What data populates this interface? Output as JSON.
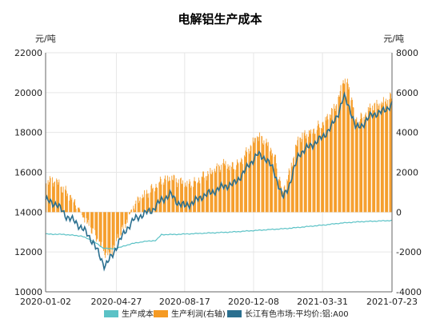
{
  "chart_data": {
    "type": "bar+line",
    "title": "电解铝生产成本",
    "left_unit": "元/吨",
    "right_unit": "元/吨",
    "left_axis": {
      "min": 10000,
      "max": 22000,
      "ticks": [
        10000,
        12000,
        14000,
        16000,
        18000,
        20000,
        22000
      ]
    },
    "right_axis": {
      "min": -4000,
      "max": 8000,
      "ticks": [
        -4000,
        -2000,
        0,
        2000,
        4000,
        6000,
        8000
      ]
    },
    "x_range": [
      "2020-01-02",
      "2021-07-23"
    ],
    "x_ticks": [
      "2020-01-02",
      "2020-04-27",
      "2020-08-17",
      "2020-12-08",
      "2021-03-31",
      "2021-07-23"
    ],
    "legend": [
      {
        "name": "生产成本",
        "color": "#5bc2c6"
      },
      {
        "name": "生产利润(右轴)",
        "color": "#f59a23"
      },
      {
        "name": "长江有色市场:平均价:铝:A00",
        "color": "#2a6f8f"
      }
    ],
    "series": [
      {
        "name": "生产成本",
        "axis": "left",
        "color": "#5bc2c6",
        "points": [
          [
            "2020-01-02",
            12900
          ],
          [
            "2020-02-01",
            12880
          ],
          [
            "2020-03-01",
            12800
          ],
          [
            "2020-03-20",
            12550
          ],
          [
            "2020-04-05",
            12200
          ],
          [
            "2020-04-20",
            12150
          ],
          [
            "2020-05-05",
            12250
          ],
          [
            "2020-05-20",
            12400
          ],
          [
            "2020-06-10",
            12520
          ],
          [
            "2020-07-01",
            12580
          ],
          [
            "2020-07-10",
            12870
          ],
          [
            "2020-08-01",
            12880
          ],
          [
            "2020-09-01",
            12920
          ],
          [
            "2020-10-01",
            12960
          ],
          [
            "2020-11-01",
            13000
          ],
          [
            "2020-12-01",
            13060
          ],
          [
            "2021-01-01",
            13120
          ],
          [
            "2021-02-01",
            13180
          ],
          [
            "2021-03-01",
            13260
          ],
          [
            "2021-04-01",
            13350
          ],
          [
            "2021-05-01",
            13450
          ],
          [
            "2021-06-01",
            13520
          ],
          [
            "2021-07-23",
            13580
          ]
        ]
      },
      {
        "name": "生产利润(右轴)",
        "axis": "right",
        "color": "#f59a23",
        "points": [
          [
            "2020-01-02",
            1600
          ],
          [
            "2020-01-20",
            1500
          ],
          [
            "2020-02-05",
            1000
          ],
          [
            "2020-02-20",
            500
          ],
          [
            "2020-03-05",
            -300
          ],
          [
            "2020-03-20",
            -1000
          ],
          [
            "2020-04-05",
            -1900
          ],
          [
            "2020-04-15",
            -2200
          ],
          [
            "2020-04-27",
            -1400
          ],
          [
            "2020-05-10",
            -700
          ],
          [
            "2020-05-25",
            300
          ],
          [
            "2020-06-10",
            800
          ],
          [
            "2020-06-25",
            1200
          ],
          [
            "2020-07-10",
            1600
          ],
          [
            "2020-07-25",
            1700
          ],
          [
            "2020-08-17",
            1400
          ],
          [
            "2020-09-01",
            1500
          ],
          [
            "2020-09-15",
            1800
          ],
          [
            "2020-10-01",
            2000
          ],
          [
            "2020-10-20",
            2400
          ],
          [
            "2020-11-05",
            2300
          ],
          [
            "2020-11-20",
            2700
          ],
          [
            "2020-12-01",
            3200
          ],
          [
            "2020-12-15",
            3800
          ],
          [
            "2020-12-28",
            3500
          ],
          [
            "2021-01-10",
            3000
          ],
          [
            "2021-01-25",
            1000
          ],
          [
            "2021-02-05",
            2000
          ],
          [
            "2021-02-20",
            3700
          ],
          [
            "2021-03-05",
            3900
          ],
          [
            "2021-03-20",
            4200
          ],
          [
            "2021-04-01",
            4500
          ],
          [
            "2021-04-15",
            5000
          ],
          [
            "2021-04-25",
            5500
          ],
          [
            "2021-05-05",
            6700
          ],
          [
            "2021-05-15",
            6200
          ],
          [
            "2021-05-25",
            4600
          ],
          [
            "2021-06-05",
            4800
          ],
          [
            "2021-06-20",
            5300
          ],
          [
            "2021-07-05",
            5400
          ],
          [
            "2021-07-23",
            5800
          ]
        ]
      },
      {
        "name": "长江有色市场:平均价:铝:A00",
        "axis": "left",
        "color": "#2a6f8f",
        "points": [
          [
            "2020-01-02",
            14600
          ],
          [
            "2020-01-20",
            14400
          ],
          [
            "2020-02-05",
            13800
          ],
          [
            "2020-02-20",
            13500
          ],
          [
            "2020-03-05",
            13100
          ],
          [
            "2020-03-20",
            12500
          ],
          [
            "2020-04-01",
            11700
          ],
          [
            "2020-04-08",
            11300
          ],
          [
            "2020-04-20",
            11800
          ],
          [
            "2020-05-01",
            12500
          ],
          [
            "2020-05-15",
            13200
          ],
          [
            "2020-05-25",
            13600
          ],
          [
            "2020-06-10",
            13900
          ],
          [
            "2020-06-25",
            14100
          ],
          [
            "2020-07-10",
            14600
          ],
          [
            "2020-07-25",
            14900
          ],
          [
            "2020-08-05",
            14500
          ],
          [
            "2020-08-17",
            14300
          ],
          [
            "2020-09-01",
            14500
          ],
          [
            "2020-09-15",
            14800
          ],
          [
            "2020-10-01",
            15000
          ],
          [
            "2020-10-20",
            15300
          ],
          [
            "2020-11-05",
            15400
          ],
          [
            "2020-11-20",
            15900
          ],
          [
            "2020-12-01",
            16400
          ],
          [
            "2020-12-15",
            16900
          ],
          [
            "2020-12-28",
            16700
          ],
          [
            "2021-01-10",
            16100
          ],
          [
            "2021-01-25",
            14700
          ],
          [
            "2021-02-05",
            15400
          ],
          [
            "2021-02-20",
            16900
          ],
          [
            "2021-03-05",
            17200
          ],
          [
            "2021-03-20",
            17500
          ],
          [
            "2021-04-01",
            17800
          ],
          [
            "2021-04-15",
            18300
          ],
          [
            "2021-04-25",
            18900
          ],
          [
            "2021-05-05",
            19800
          ],
          [
            "2021-05-15",
            19200
          ],
          [
            "2021-05-25",
            18200
          ],
          [
            "2021-06-05",
            18400
          ],
          [
            "2021-06-20",
            18900
          ],
          [
            "2021-07-05",
            19000
          ],
          [
            "2021-07-23",
            19400
          ]
        ]
      }
    ]
  }
}
